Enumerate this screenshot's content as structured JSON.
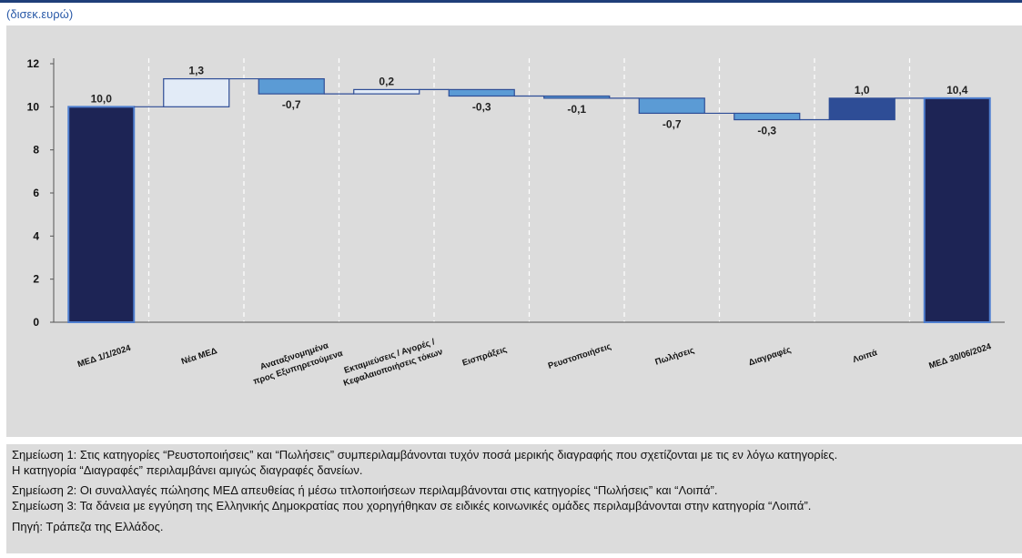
{
  "header": {
    "unit_label": "(δισεκ.ευρώ)"
  },
  "colors": {
    "total": "#1d2455",
    "increase": "#e2ebf7",
    "decrease_light": "#5b9bd5",
    "decrease_dark": "#2e4d96",
    "background": "#dcdcdc",
    "rule": "#1f3f79"
  },
  "chart_data": {
    "type": "bar",
    "subtype": "waterfall",
    "ylim": [
      0,
      12
    ],
    "yticks": [
      "0",
      "2",
      "4",
      "6",
      "8",
      "10",
      "12"
    ],
    "grid": "vertical dashed",
    "categories": [
      [
        "ΜΕΔ 1/1/2024"
      ],
      [
        "Νέα ΜΕΔ"
      ],
      [
        "Αναταξινομημένα",
        "προς Εξυπηρετούμενα"
      ],
      [
        "Εκταμιεύσεις / Αγορές /",
        "Κεφαλαιοποιήσεις τόκων"
      ],
      [
        "Εισπράξεις"
      ],
      [
        "Ρευστοποιήσεις"
      ],
      [
        "Πωλήσεις"
      ],
      [
        "Διαγραφές"
      ],
      [
        "Λοιπά"
      ],
      [
        "ΜΕΔ 30/06/2024"
      ]
    ],
    "values": [
      10.0,
      1.3,
      -0.7,
      0.2,
      -0.3,
      -0.1,
      -0.7,
      -0.3,
      1.0,
      10.4
    ],
    "value_labels": [
      "10,0",
      "1,3",
      "-0,7",
      "0,2",
      "-0,3",
      "-0,1",
      "-0,7",
      "-0,3",
      "1,0",
      "10,4"
    ],
    "kinds": [
      "total",
      "increase",
      "decrease",
      "increase",
      "decrease",
      "decrease",
      "decrease",
      "decrease",
      "other",
      "total"
    ]
  },
  "notes": [
    "Σημείωση 1: Στις κατηγορίες “Ρευστοποιήσεις” και “Πωλήσεις” συμπεριλαμβάνονται τυχόν ποσά μερικής διαγραφής που σχετίζονται με τις εν λόγω κατηγορίες.",
    "Η κατηγορία “Διαγραφές” περιλαμβάνει αμιγώς διαγραφές δανείων.",
    "Σημείωση 2: Οι συναλλαγές πώλησης ΜΕΔ απευθείας ή μέσω τιτλοποιήσεων περιλαμβάνονται στις κατηγορίες “Πωλήσεις” και “Λοιπά”.",
    "Σημείωση 3: Τα δάνεια με εγγύηση της Ελληνικής Δημοκρατίας που χορηγήθηκαν σε ειδικές κοινωνικές ομάδες περιλαμβάνονται στην κατηγορία “Λοιπά”.",
    "Πηγή: Τράπεζα της Ελλάδος."
  ]
}
